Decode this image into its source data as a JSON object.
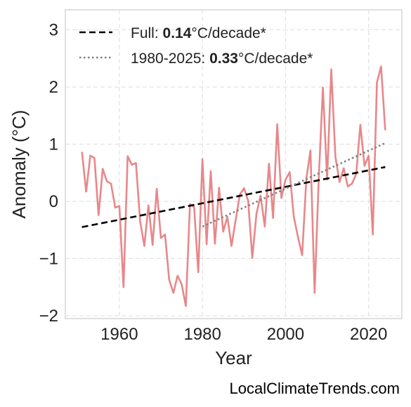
{
  "chart_data": {
    "type": "line",
    "xlabel": "Year",
    "ylabel": "Anomaly (°C)",
    "xlim": [
      1947,
      2028
    ],
    "ylim": [
      -2.05,
      3.35
    ],
    "x_ticks": [
      1960,
      1980,
      2000,
      2020
    ],
    "y_ticks": [
      -2,
      -1,
      0,
      1,
      2,
      3
    ],
    "y_tick_labels": [
      "−2",
      "−1",
      "0",
      "1",
      "2",
      "3"
    ],
    "grid": true,
    "legend_position": "top-left",
    "series": [
      {
        "color": "#e8878a",
        "x": [
          1951,
          1952,
          1953,
          1954,
          1955,
          1956,
          1957,
          1958,
          1959,
          1960,
          1961,
          1962,
          1963,
          1964,
          1965,
          1966,
          1967,
          1968,
          1969,
          1970,
          1971,
          1972,
          1973,
          1974,
          1975,
          1976,
          1977,
          1978,
          1979,
          1980,
          1981,
          1982,
          1983,
          1984,
          1985,
          1986,
          1987,
          1988,
          1989,
          1990,
          1991,
          1992,
          1993,
          1994,
          1995,
          1996,
          1997,
          1998,
          1999,
          2000,
          2001,
          2002,
          2003,
          2004,
          2005,
          2006,
          2007,
          2008,
          2009,
          2010,
          2011,
          2012,
          2013,
          2014,
          2015,
          2016,
          2017,
          2018,
          2019,
          2020,
          2021,
          2022,
          2023,
          2024
        ],
        "y": [
          0.86,
          0.17,
          0.8,
          0.76,
          -0.24,
          0.57,
          0.35,
          0.31,
          -0.11,
          -0.08,
          -1.5,
          0.79,
          0.64,
          0.67,
          -0.34,
          -0.78,
          -0.07,
          -0.76,
          0.22,
          -0.64,
          -0.58,
          -1.37,
          -1.6,
          -1.3,
          -1.45,
          -1.83,
          -0.05,
          -0.1,
          -1.24,
          0.74,
          -0.75,
          0.53,
          -0.74,
          0.24,
          -0.53,
          -0.27,
          -0.78,
          -0.32,
          0.12,
          0.23,
          0.01,
          -0.99,
          -0.22,
          0.1,
          -0.44,
          0.66,
          -0.29,
          1.35,
          0.06,
          0.38,
          0.51,
          -0.27,
          -0.63,
          -0.94,
          0.39,
          0.89,
          -1.6,
          0.4,
          1.99,
          0.38,
          2.31,
          0.78,
          0.34,
          0.58,
          0.26,
          0.31,
          0.48,
          1.34,
          0.62,
          0.8,
          -0.58,
          2.08,
          2.36,
          1.25
        ]
      }
    ],
    "trends": [
      {
        "label_prefix": "Full: ",
        "label_value": "0.14",
        "label_suffix": "°C/decade*",
        "style": "dashed",
        "color": "#000000",
        "x": [
          1951,
          2024
        ],
        "y": [
          -0.45,
          0.6
        ]
      },
      {
        "label_prefix": "1980-2025: ",
        "label_value": "0.33",
        "label_suffix": "°C/decade*",
        "style": "dotted",
        "color": "#808080",
        "x": [
          1980,
          2024
        ],
        "y": [
          -0.44,
          1.02
        ]
      }
    ]
  },
  "footer": {
    "credit": "LocalClimateTrends.com"
  }
}
